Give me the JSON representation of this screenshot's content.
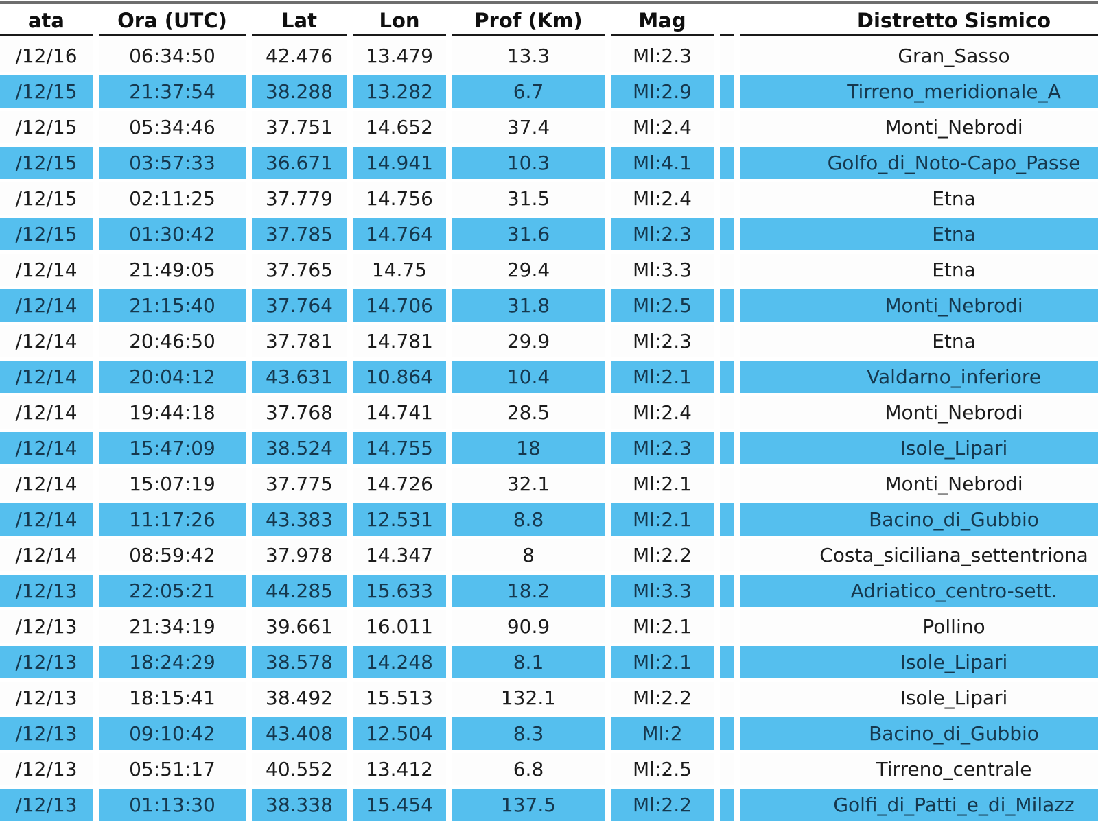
{
  "header": {
    "columns": [
      {
        "key": "date",
        "label": "ata"
      },
      {
        "key": "time",
        "label": "Ora (UTC)"
      },
      {
        "key": "lat",
        "label": "Lat"
      },
      {
        "key": "lon",
        "label": "Lon"
      },
      {
        "key": "depth",
        "label": "Prof (Km)"
      },
      {
        "key": "mag",
        "label": "Mag"
      },
      {
        "key": "spacer",
        "label": ""
      },
      {
        "key": "district",
        "label": "Distretto Sismico"
      }
    ]
  },
  "rows": [
    {
      "date": "/12/16",
      "time": "06:34:50",
      "lat": "42.476",
      "lon": "13.479",
      "depth": "13.3",
      "mag": "Ml:2.3",
      "district": "Gran_Sasso"
    },
    {
      "date": "/12/15",
      "time": "21:37:54",
      "lat": "38.288",
      "lon": "13.282",
      "depth": "6.7",
      "mag": "Ml:2.9",
      "district": "Tirreno_meridionale_A"
    },
    {
      "date": "/12/15",
      "time": "05:34:46",
      "lat": "37.751",
      "lon": "14.652",
      "depth": "37.4",
      "mag": "Ml:2.4",
      "district": "Monti_Nebrodi"
    },
    {
      "date": "/12/15",
      "time": "03:57:33",
      "lat": "36.671",
      "lon": "14.941",
      "depth": "10.3",
      "mag": "Ml:4.1",
      "district": "Golfo_di_Noto-Capo_Passe"
    },
    {
      "date": "/12/15",
      "time": "02:11:25",
      "lat": "37.779",
      "lon": "14.756",
      "depth": "31.5",
      "mag": "Ml:2.4",
      "district": "Etna"
    },
    {
      "date": "/12/15",
      "time": "01:30:42",
      "lat": "37.785",
      "lon": "14.764",
      "depth": "31.6",
      "mag": "Ml:2.3",
      "district": "Etna"
    },
    {
      "date": "/12/14",
      "time": "21:49:05",
      "lat": "37.765",
      "lon": "14.75",
      "depth": "29.4",
      "mag": "Ml:3.3",
      "district": "Etna"
    },
    {
      "date": "/12/14",
      "time": "21:15:40",
      "lat": "37.764",
      "lon": "14.706",
      "depth": "31.8",
      "mag": "Ml:2.5",
      "district": "Monti_Nebrodi"
    },
    {
      "date": "/12/14",
      "time": "20:46:50",
      "lat": "37.781",
      "lon": "14.781",
      "depth": "29.9",
      "mag": "Ml:2.3",
      "district": "Etna"
    },
    {
      "date": "/12/14",
      "time": "20:04:12",
      "lat": "43.631",
      "lon": "10.864",
      "depth": "10.4",
      "mag": "Ml:2.1",
      "district": "Valdarno_inferiore"
    },
    {
      "date": "/12/14",
      "time": "19:44:18",
      "lat": "37.768",
      "lon": "14.741",
      "depth": "28.5",
      "mag": "Ml:2.4",
      "district": "Monti_Nebrodi"
    },
    {
      "date": "/12/14",
      "time": "15:47:09",
      "lat": "38.524",
      "lon": "14.755",
      "depth": "18",
      "mag": "Ml:2.3",
      "district": "Isole_Lipari"
    },
    {
      "date": "/12/14",
      "time": "15:07:19",
      "lat": "37.775",
      "lon": "14.726",
      "depth": "32.1",
      "mag": "Ml:2.1",
      "district": "Monti_Nebrodi"
    },
    {
      "date": "/12/14",
      "time": "11:17:26",
      "lat": "43.383",
      "lon": "12.531",
      "depth": "8.8",
      "mag": "Ml:2.1",
      "district": "Bacino_di_Gubbio"
    },
    {
      "date": "/12/14",
      "time": "08:59:42",
      "lat": "37.978",
      "lon": "14.347",
      "depth": "8",
      "mag": "Ml:2.2",
      "district": "Costa_siciliana_settentriona"
    },
    {
      "date": "/12/13",
      "time": "22:05:21",
      "lat": "44.285",
      "lon": "15.633",
      "depth": "18.2",
      "mag": "Ml:3.3",
      "district": "Adriatico_centro-sett."
    },
    {
      "date": "/12/13",
      "time": "21:34:19",
      "lat": "39.661",
      "lon": "16.011",
      "depth": "90.9",
      "mag": "Ml:2.1",
      "district": "Pollino"
    },
    {
      "date": "/12/13",
      "time": "18:24:29",
      "lat": "38.578",
      "lon": "14.248",
      "depth": "8.1",
      "mag": "Ml:2.1",
      "district": "Isole_Lipari"
    },
    {
      "date": "/12/13",
      "time": "18:15:41",
      "lat": "38.492",
      "lon": "15.513",
      "depth": "132.1",
      "mag": "Ml:2.2",
      "district": "Isole_Lipari"
    },
    {
      "date": "/12/13",
      "time": "09:10:42",
      "lat": "43.408",
      "lon": "12.504",
      "depth": "8.3",
      "mag": "Ml:2",
      "district": "Bacino_di_Gubbio"
    },
    {
      "date": "/12/13",
      "time": "05:51:17",
      "lat": "40.552",
      "lon": "13.412",
      "depth": "6.8",
      "mag": "Ml:2.5",
      "district": "Tirreno_centrale"
    },
    {
      "date": "/12/13",
      "time": "01:13:30",
      "lat": "38.338",
      "lon": "15.454",
      "depth": "137.5",
      "mag": "Ml:2.2",
      "district": "Golfi_di_Patti_e_di_Milazz"
    }
  ],
  "colors": {
    "row_highlight": "#55bfee",
    "row_plain": "#fdfdfd",
    "header_rule": "#1a1a1a",
    "top_strip": "#6e6e6e"
  }
}
